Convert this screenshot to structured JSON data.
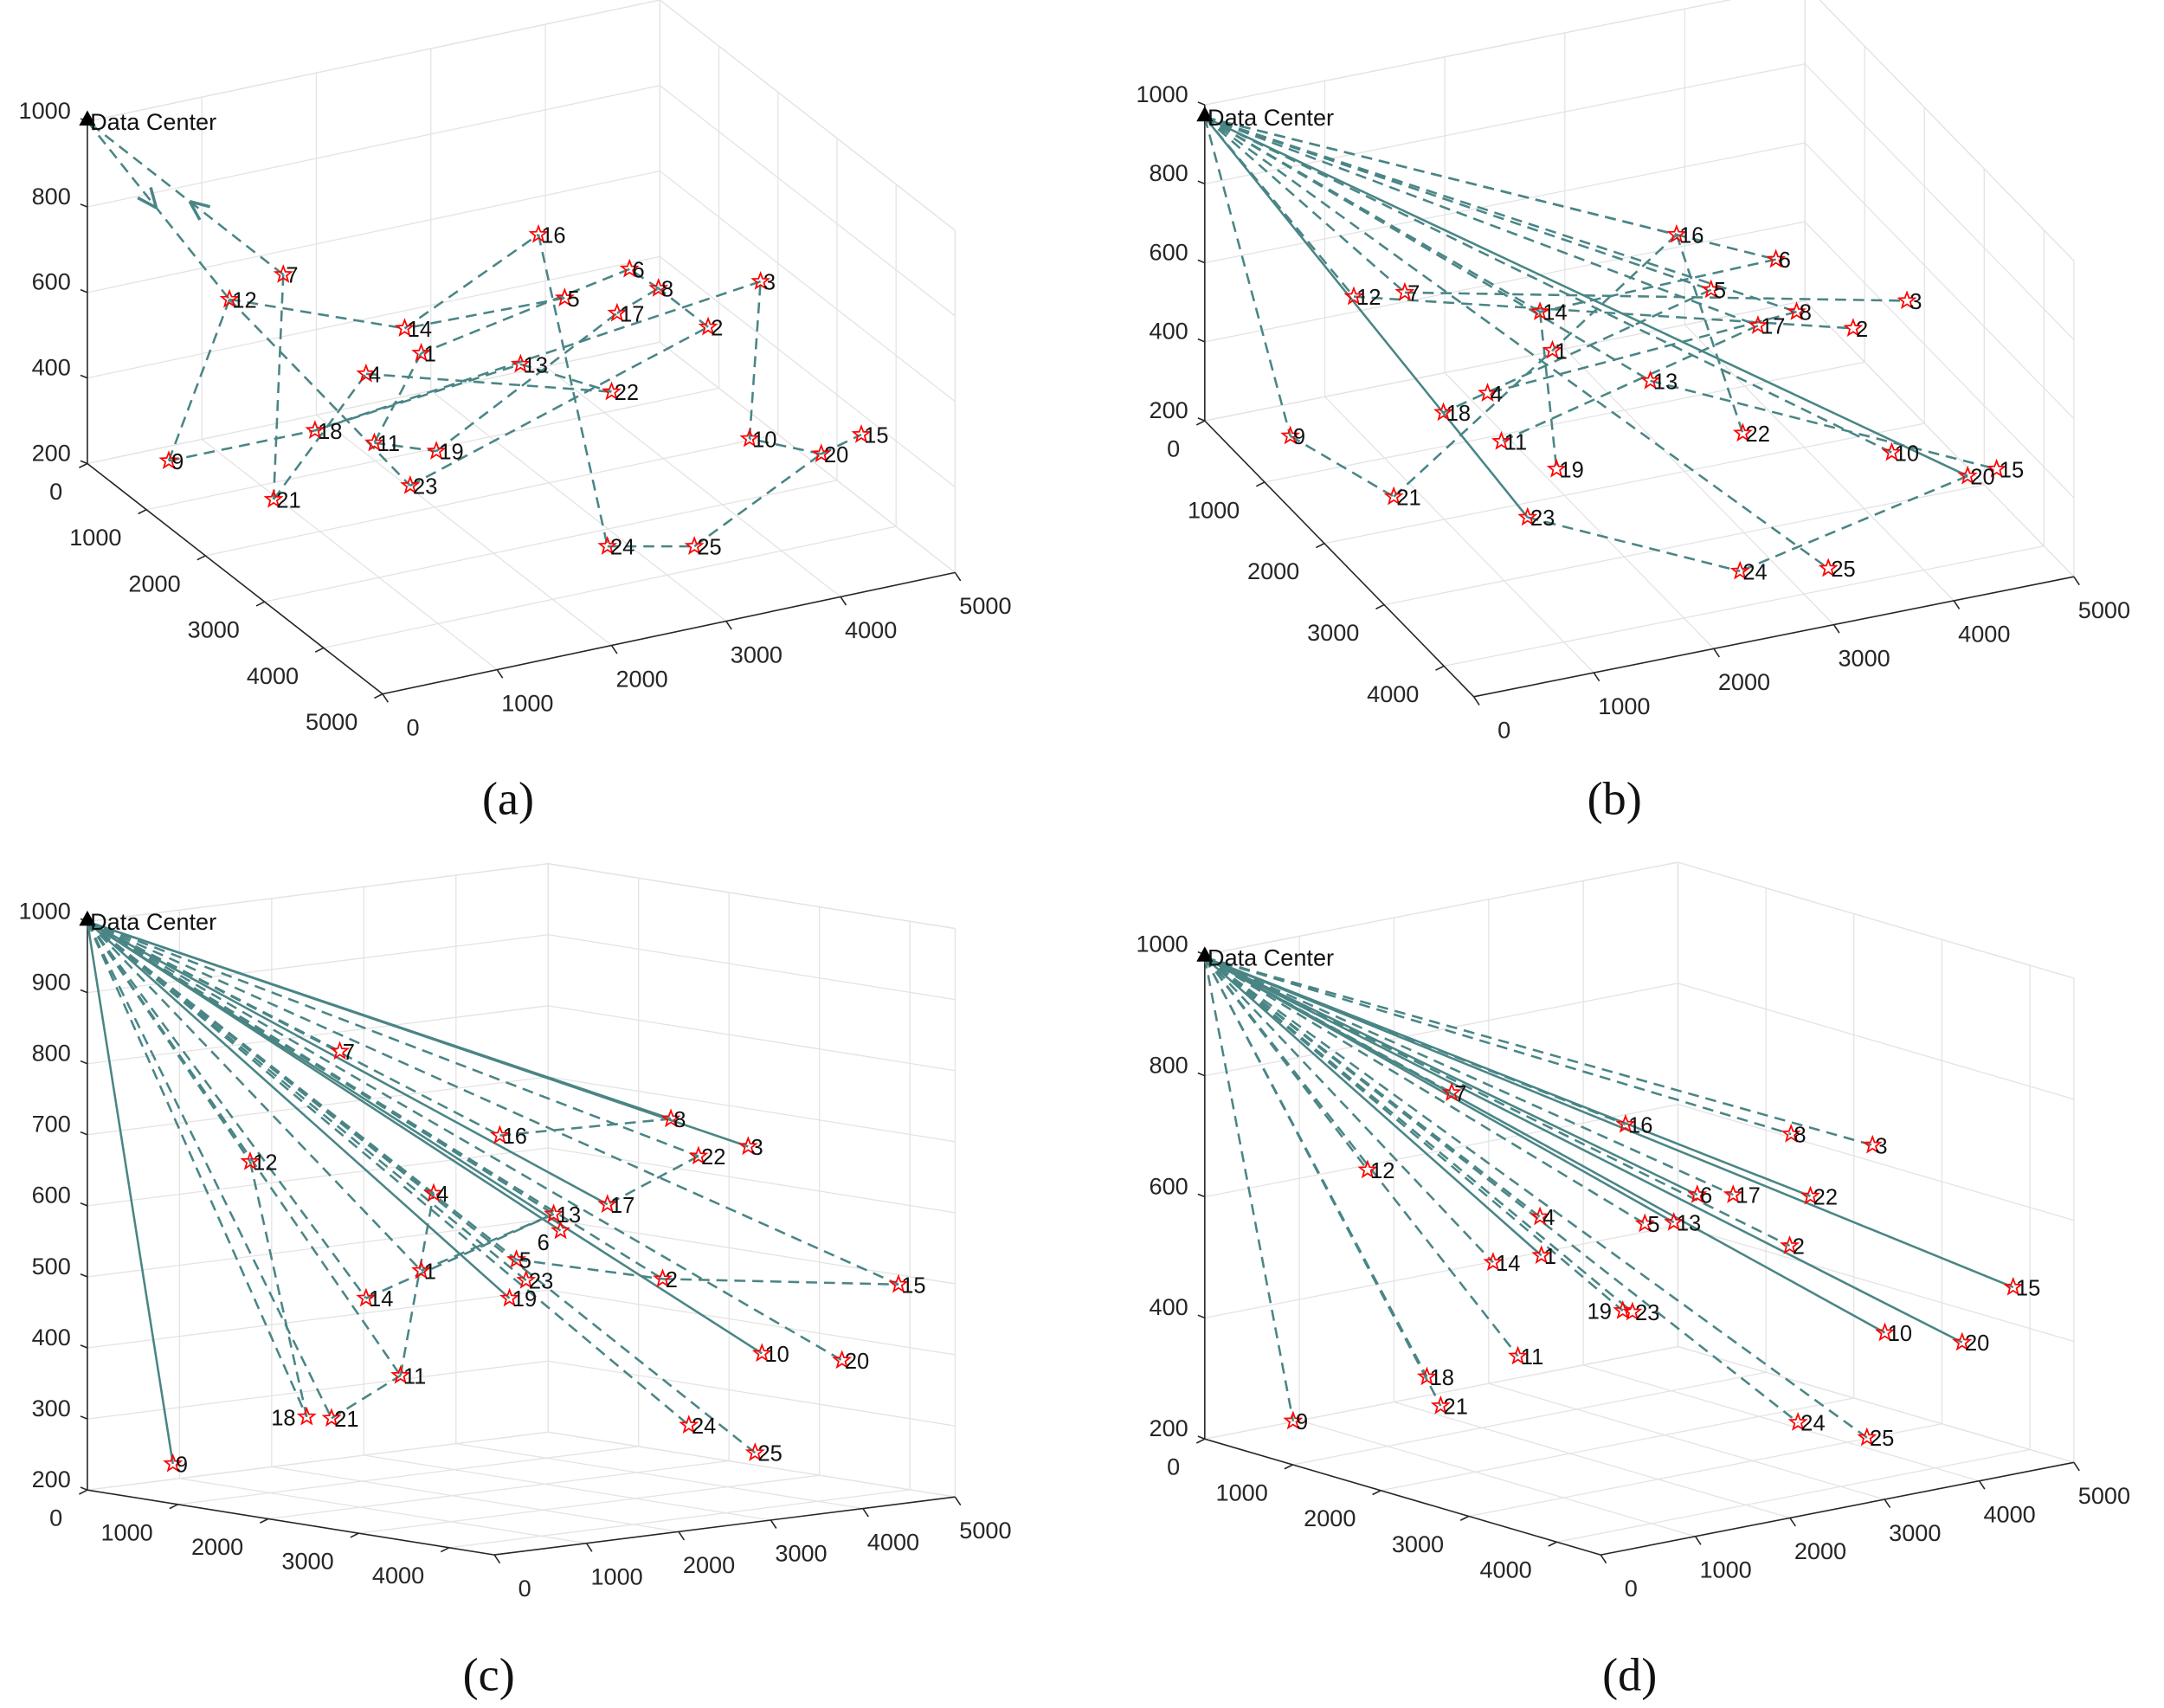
{
  "colors": {
    "edge": "#4a8585",
    "node": "#ff0000",
    "axis": "#262626",
    "grid": "#e3e3e3"
  },
  "chart_data": [
    {
      "type": "scatter3d-route",
      "caption": "(a)",
      "data_center_label": "Data Center",
      "zticks": [
        "200",
        "400",
        "600",
        "800",
        "1000"
      ],
      "left_ticks": [
        "0",
        "1000",
        "2000",
        "3000",
        "4000",
        "5000"
      ],
      "right_ticks": [
        "0",
        "1000",
        "2000",
        "3000",
        "4000",
        "5000"
      ],
      "zlim": [
        200,
        1000
      ],
      "left_lim": [
        0,
        5000
      ],
      "right_lim": [
        0,
        5000
      ],
      "nodes": [
        "1",
        "2",
        "3",
        "4",
        "5",
        "6",
        "7",
        "8",
        "9",
        "10",
        "11",
        "12",
        "13",
        "14",
        "15",
        "16",
        "17",
        "18",
        "19",
        "20",
        "21",
        "22",
        "23",
        "24",
        "25"
      ],
      "edges": [
        {
          "from": "DC",
          "to": "12",
          "style": "dashed",
          "arrow": true
        },
        {
          "from": "7",
          "to": "DC",
          "style": "dashed",
          "arrow": true
        },
        {
          "from": "12",
          "to": "9",
          "style": "dashed"
        },
        {
          "from": "9",
          "to": "18",
          "style": "dashed"
        },
        {
          "from": "18",
          "to": "13",
          "style": "dashed"
        },
        {
          "from": "13",
          "to": "22",
          "style": "dashed"
        },
        {
          "from": "12",
          "to": "14",
          "style": "dashed"
        },
        {
          "from": "14",
          "to": "16",
          "style": "dashed"
        },
        {
          "from": "16",
          "to": "24",
          "style": "dashed"
        },
        {
          "from": "24",
          "to": "25",
          "style": "dashed"
        },
        {
          "from": "25",
          "to": "20",
          "style": "dashed"
        },
        {
          "from": "20",
          "to": "15",
          "style": "dashed"
        },
        {
          "from": "20",
          "to": "10",
          "style": "dashed"
        },
        {
          "from": "10",
          "to": "3",
          "style": "dashed"
        },
        {
          "from": "3",
          "to": "18",
          "style": "dashed"
        },
        {
          "from": "7",
          "to": "21",
          "style": "dashed"
        },
        {
          "from": "21",
          "to": "4",
          "style": "dashed"
        },
        {
          "from": "4",
          "to": "22",
          "style": "dashed"
        },
        {
          "from": "12",
          "to": "23",
          "style": "dashed"
        },
        {
          "from": "23",
          "to": "2",
          "style": "dashed"
        },
        {
          "from": "2",
          "to": "8",
          "style": "dashed"
        },
        {
          "from": "8",
          "to": "6",
          "style": "dashed"
        },
        {
          "from": "6",
          "to": "1",
          "style": "dashed"
        },
        {
          "from": "1",
          "to": "11",
          "style": "dashed"
        },
        {
          "from": "11",
          "to": "19",
          "style": "dashed"
        },
        {
          "from": "19",
          "to": "17",
          "style": "dashed"
        },
        {
          "from": "17",
          "to": "8",
          "style": "dashed"
        },
        {
          "from": "5",
          "to": "14",
          "style": "dashed"
        }
      ]
    },
    {
      "type": "scatter3d-route",
      "caption": "(b)",
      "data_center_label": "Data Center",
      "zticks": [
        "200",
        "400",
        "600",
        "800",
        "1000"
      ],
      "left_ticks": [
        "0",
        "1000",
        "2000",
        "3000",
        "4000"
      ],
      "right_ticks": [
        "0",
        "1000",
        "2000",
        "3000",
        "4000",
        "5000"
      ],
      "zlim": [
        200,
        1000
      ],
      "left_lim": [
        0,
        4500
      ],
      "right_lim": [
        0,
        5000
      ],
      "nodes": [
        "1",
        "2",
        "3",
        "4",
        "5",
        "6",
        "7",
        "8",
        "9",
        "10",
        "11",
        "12",
        "13",
        "14",
        "15",
        "16",
        "17",
        "18",
        "19",
        "20",
        "21",
        "22",
        "23",
        "24",
        "25"
      ],
      "edges": [
        {
          "from": "DC",
          "to": "9",
          "style": "dashed"
        },
        {
          "from": "9",
          "to": "21",
          "style": "dashed"
        },
        {
          "from": "21",
          "to": "1",
          "style": "dashed"
        },
        {
          "from": "DC",
          "to": "12",
          "style": "dashed"
        },
        {
          "from": "12",
          "to": "2",
          "style": "dashed"
        },
        {
          "from": "DC",
          "to": "7",
          "style": "dashed"
        },
        {
          "from": "7",
          "to": "3",
          "style": "dashed"
        },
        {
          "from": "DC",
          "to": "16",
          "style": "dashed"
        },
        {
          "from": "16",
          "to": "22",
          "style": "dashed"
        },
        {
          "from": "DC",
          "to": "6",
          "style": "dashed"
        },
        {
          "from": "6",
          "to": "14",
          "style": "dashed"
        },
        {
          "from": "DC",
          "to": "5",
          "style": "dashed"
        },
        {
          "from": "5",
          "to": "18",
          "style": "dashed"
        },
        {
          "from": "DC",
          "to": "8",
          "style": "dashed"
        },
        {
          "from": "8",
          "to": "4",
          "style": "dashed"
        },
        {
          "from": "DC",
          "to": "17",
          "style": "dashed"
        },
        {
          "from": "17",
          "to": "11",
          "style": "dashed"
        },
        {
          "from": "DC",
          "to": "14",
          "style": "dashed"
        },
        {
          "from": "14",
          "to": "19",
          "style": "dashed"
        },
        {
          "from": "DC",
          "to": "13",
          "style": "dashed"
        },
        {
          "from": "13",
          "to": "15",
          "style": "dashed"
        },
        {
          "from": "DC",
          "to": "10",
          "style": "dashed"
        },
        {
          "from": "DC",
          "to": "20",
          "style": "solid"
        },
        {
          "from": "20",
          "to": "24",
          "style": "dashed"
        },
        {
          "from": "DC",
          "to": "23",
          "style": "solid"
        },
        {
          "from": "23",
          "to": "24",
          "style": "dashed"
        },
        {
          "from": "DC",
          "to": "25",
          "style": "dashed"
        },
        {
          "from": "16",
          "to": "1",
          "style": "dashed"
        }
      ]
    },
    {
      "type": "scatter3d-route",
      "caption": "(c)",
      "data_center_label": "Data Center",
      "zticks": [
        "200",
        "300",
        "400",
        "500",
        "600",
        "700",
        "800",
        "900",
        "1000"
      ],
      "left_ticks": [
        "0",
        "1000",
        "2000",
        "3000",
        "4000"
      ],
      "right_ticks": [
        "0",
        "1000",
        "2000",
        "3000",
        "4000",
        "5000"
      ],
      "zlim": [
        200,
        1000
      ],
      "left_lim": [
        0,
        4500
      ],
      "right_lim": [
        0,
        5000
      ],
      "nodes": [
        "1",
        "2",
        "3",
        "4",
        "5",
        "6",
        "7",
        "8",
        "9",
        "10",
        "11",
        "12",
        "13",
        "14",
        "15",
        "16",
        "17",
        "18",
        "19",
        "20",
        "21",
        "22",
        "23",
        "24",
        "25"
      ],
      "edges": [
        {
          "from": "DC",
          "to": "9",
          "style": "solid"
        },
        {
          "from": "DC",
          "to": "18",
          "style": "dashed"
        },
        {
          "from": "DC",
          "to": "21",
          "style": "dashed"
        },
        {
          "from": "21",
          "to": "11",
          "style": "dashed"
        },
        {
          "from": "DC",
          "to": "12",
          "style": "dashed"
        },
        {
          "from": "12",
          "to": "18",
          "style": "dashed"
        },
        {
          "from": "DC",
          "to": "14",
          "style": "dashed"
        },
        {
          "from": "14",
          "to": "13",
          "style": "dashed"
        },
        {
          "from": "DC",
          "to": "11",
          "style": "dashed"
        },
        {
          "from": "11",
          "to": "4",
          "style": "dashed"
        },
        {
          "from": "DC",
          "to": "1",
          "style": "dashed"
        },
        {
          "from": "1",
          "to": "13",
          "style": "dashed"
        },
        {
          "from": "DC",
          "to": "19",
          "style": "solid"
        },
        {
          "from": "DC",
          "to": "7",
          "style": "dashed"
        },
        {
          "from": "DC",
          "to": "16",
          "style": "dashed"
        },
        {
          "from": "16",
          "to": "8",
          "style": "dashed"
        },
        {
          "from": "DC",
          "to": "8",
          "style": "solid"
        },
        {
          "from": "DC",
          "to": "3",
          "style": "solid"
        },
        {
          "from": "DC",
          "to": "22",
          "style": "dashed"
        },
        {
          "from": "22",
          "to": "17",
          "style": "dashed"
        },
        {
          "from": "DC",
          "to": "6",
          "style": "solid"
        },
        {
          "from": "DC",
          "to": "13",
          "style": "dashed"
        },
        {
          "from": "DC",
          "to": "5",
          "style": "dashed"
        },
        {
          "from": "5",
          "to": "2",
          "style": "dashed"
        },
        {
          "from": "2",
          "to": "15",
          "style": "dashed"
        },
        {
          "from": "DC",
          "to": "23",
          "style": "dashed"
        },
        {
          "from": "DC",
          "to": "2",
          "style": "dashed"
        },
        {
          "from": "DC",
          "to": "10",
          "style": "solid"
        },
        {
          "from": "DC",
          "to": "20",
          "style": "dashed"
        },
        {
          "from": "DC",
          "to": "15",
          "style": "dashed"
        },
        {
          "from": "DC",
          "to": "24",
          "style": "dashed"
        },
        {
          "from": "DC",
          "to": "25",
          "style": "dashed"
        },
        {
          "from": "DC",
          "to": "17",
          "style": "solid"
        },
        {
          "from": "DC",
          "to": "4",
          "style": "dashed"
        }
      ]
    },
    {
      "type": "scatter3d-route",
      "caption": "(d)",
      "data_center_label": "Data Center",
      "zticks": [
        "200",
        "400",
        "600",
        "800",
        "1000"
      ],
      "left_ticks": [
        "0",
        "1000",
        "2000",
        "3000",
        "4000"
      ],
      "right_ticks": [
        "0",
        "1000",
        "2000",
        "3000",
        "4000",
        "5000"
      ],
      "zlim": [
        200,
        1000
      ],
      "left_lim": [
        0,
        4500
      ],
      "right_lim": [
        0,
        5000
      ],
      "nodes": [
        "1",
        "2",
        "3",
        "4",
        "5",
        "6",
        "7",
        "8",
        "9",
        "10",
        "11",
        "12",
        "13",
        "14",
        "15",
        "16",
        "17",
        "18",
        "19",
        "20",
        "21",
        "22",
        "23",
        "24",
        "25"
      ],
      "edges": [
        {
          "from": "DC",
          "to": "9",
          "style": "dashed"
        },
        {
          "from": "DC",
          "to": "18",
          "style": "dashed"
        },
        {
          "from": "DC",
          "to": "21",
          "style": "dashed"
        },
        {
          "from": "DC",
          "to": "12",
          "style": "dashed"
        },
        {
          "from": "DC",
          "to": "11",
          "style": "dashed"
        },
        {
          "from": "DC",
          "to": "14",
          "style": "dashed"
        },
        {
          "from": "DC",
          "to": "1",
          "style": "solid"
        },
        {
          "from": "DC",
          "to": "4",
          "style": "dashed"
        },
        {
          "from": "DC",
          "to": "19",
          "style": "dashed"
        },
        {
          "from": "DC",
          "to": "23",
          "style": "dashed"
        },
        {
          "from": "DC",
          "to": "7",
          "style": "dashed"
        },
        {
          "from": "DC",
          "to": "5",
          "style": "dashed"
        },
        {
          "from": "DC",
          "to": "13",
          "style": "solid"
        },
        {
          "from": "DC",
          "to": "6",
          "style": "solid"
        },
        {
          "from": "DC",
          "to": "17",
          "style": "dashed"
        },
        {
          "from": "DC",
          "to": "16",
          "style": "dashed"
        },
        {
          "from": "DC",
          "to": "8",
          "style": "dashed"
        },
        {
          "from": "DC",
          "to": "3",
          "style": "dashed"
        },
        {
          "from": "DC",
          "to": "22",
          "style": "solid"
        },
        {
          "from": "DC",
          "to": "2",
          "style": "dashed"
        },
        {
          "from": "DC",
          "to": "15",
          "style": "solid"
        },
        {
          "from": "DC",
          "to": "10",
          "style": "solid"
        },
        {
          "from": "DC",
          "to": "20",
          "style": "solid"
        },
        {
          "from": "DC",
          "to": "24",
          "style": "dashed"
        },
        {
          "from": "DC",
          "to": "25",
          "style": "dashed"
        }
      ]
    }
  ]
}
